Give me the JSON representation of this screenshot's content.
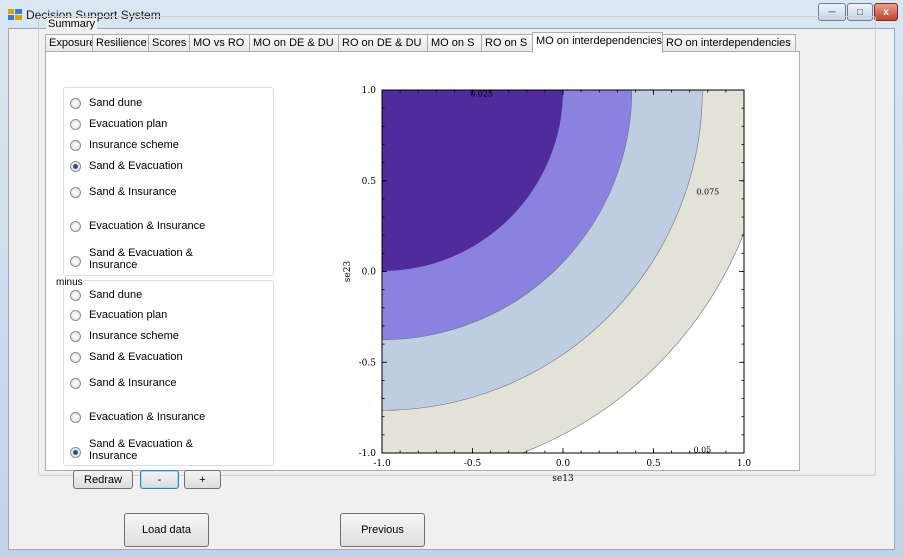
{
  "window": {
    "title": "Decision Support System",
    "controls": {
      "minimize": "─",
      "maximize": "□",
      "close": "x"
    }
  },
  "summary_label": "Summary",
  "tabs": [
    {
      "label": "Exposure",
      "active": false
    },
    {
      "label": "Resilience",
      "active": false
    },
    {
      "label": "Scores",
      "active": false
    },
    {
      "label": "MO vs RO",
      "active": false
    },
    {
      "label": "MO on DE & DU",
      "active": false
    },
    {
      "label": "RO on DE & DU",
      "active": false
    },
    {
      "label": "MO on S",
      "active": false
    },
    {
      "label": "RO on S",
      "active": false
    },
    {
      "label": "MO on interdependencies",
      "active": true
    },
    {
      "label": "RO on interdependencies",
      "active": false
    }
  ],
  "plus_group": {
    "options": [
      {
        "label": "Sand dune",
        "checked": false
      },
      {
        "label": "Evacuation plan",
        "checked": false
      },
      {
        "label": "Insurance scheme",
        "checked": false
      },
      {
        "label": "Sand & Evacuation",
        "checked": true
      },
      {
        "label": "Sand & Insurance",
        "checked": false
      },
      {
        "label": "Evacuation & Insurance",
        "checked": false
      },
      {
        "label": "Sand & Evacuation & Insurance",
        "checked": false
      }
    ]
  },
  "minus_group": {
    "label": "minus",
    "options": [
      {
        "label": "Sand dune",
        "checked": false
      },
      {
        "label": "Evacuation plan",
        "checked": false
      },
      {
        "label": "Insurance scheme",
        "checked": false
      },
      {
        "label": "Sand & Evacuation",
        "checked": false
      },
      {
        "label": "Sand & Insurance",
        "checked": false
      },
      {
        "label": "Evacuation & Insurance",
        "checked": false
      },
      {
        "label": "Sand & Evacuation & Insurance",
        "checked": true
      }
    ]
  },
  "buttons": {
    "redraw": "Redraw",
    "minus": "-",
    "plus": "+",
    "load_data": "Load data",
    "previous": "Previous"
  },
  "chart_data": {
    "type": "contour",
    "xlabel": "se13",
    "ylabel": "se23",
    "xlim": [
      -1.0,
      1.0
    ],
    "ylim": [
      -1.0,
      1.0
    ],
    "x_ticks": [
      "-1.0",
      "-0.5",
      "0.0",
      "0.5",
      "1.0"
    ],
    "y_ticks": [
      "1.0",
      "0.5",
      "0.0",
      "-0.5",
      "-1.0"
    ],
    "center": [
      -1.0,
      1.0
    ],
    "contour_radii": [
      1.0,
      1.38,
      1.77,
      2.15
    ],
    "band_colors": [
      "#ffffff",
      "#4f2b9b",
      "#8b82e0",
      "#bfcde2",
      "#e2e2d6"
    ],
    "contour_labels": [
      {
        "text": "0.025",
        "x": -0.45,
        "y": 0.98
      },
      {
        "text": "0.075",
        "x": 0.8,
        "y": 0.44
      },
      {
        "text": "0.05",
        "x": 0.77,
        "y": -0.98
      }
    ]
  },
  "icons": {
    "app": "app-icon",
    "radio": "radio-button-icon"
  }
}
